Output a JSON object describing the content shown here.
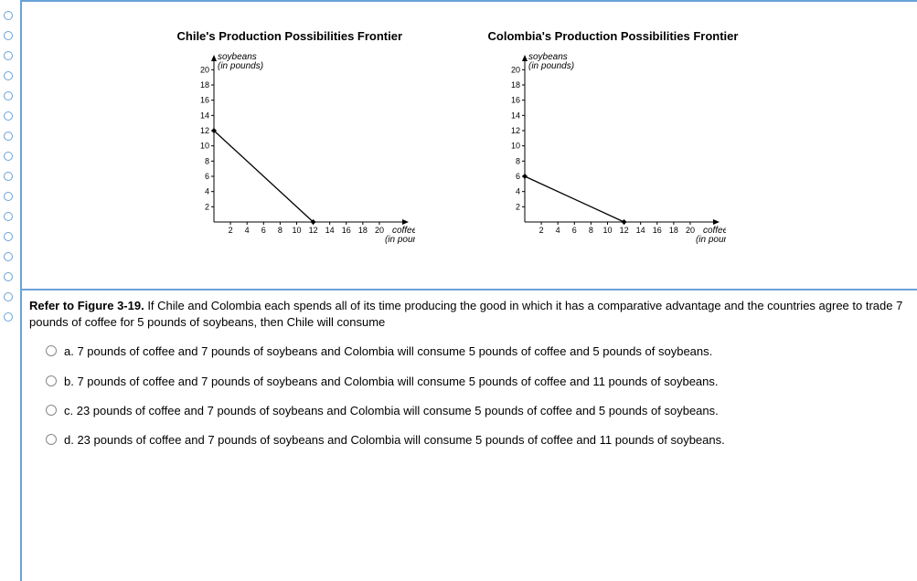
{
  "top_marker": ")",
  "rail_dot_count": 16,
  "charts": {
    "chile": {
      "title": "Chile's Production Possibilities Frontier",
      "y_axis_label": "soybeans",
      "y_axis_sub": "(in pounds)",
      "x_axis_label": "coffee",
      "x_axis_sub": "(in pounds)",
      "y_ticks": [
        2,
        4,
        6,
        8,
        10,
        12,
        14,
        16,
        18,
        20
      ],
      "x_ticks": [
        2,
        4,
        6,
        8,
        10,
        12,
        14,
        16,
        18,
        20
      ],
      "line_start": {
        "x": 0,
        "y": 12
      },
      "line_end": {
        "x": 12,
        "y": 0
      },
      "xlim": [
        0,
        21
      ],
      "ylim": [
        0,
        21
      ],
      "axis_color": "#000",
      "line_color": "#000",
      "point_color": "#000",
      "tick_len": 3,
      "font_size_tick": 9,
      "font_size_label": 10
    },
    "colombia": {
      "title": "Colombia's Production Possibilities Frontier",
      "y_axis_label": "soybeans",
      "y_axis_sub": "(in pounds)",
      "x_axis_label": "coffee",
      "x_axis_sub": "(in pounds)",
      "y_ticks": [
        2,
        4,
        6,
        8,
        10,
        12,
        14,
        16,
        18,
        20
      ],
      "x_ticks": [
        2,
        4,
        6,
        8,
        10,
        12,
        14,
        16,
        18,
        20
      ],
      "line_start": {
        "x": 0,
        "y": 6
      },
      "line_end": {
        "x": 12,
        "y": 0
      },
      "xlim": [
        0,
        21
      ],
      "ylim": [
        0,
        21
      ],
      "axis_color": "#000",
      "line_color": "#000",
      "point_color": "#000",
      "tick_len": 3,
      "font_size_tick": 9,
      "font_size_label": 10
    }
  },
  "question": {
    "ref": "Refer to Figure 3-19.",
    "body": " If Chile and Colombia each spends all of its time producing the good in which it has a comparative advantage and the countries agree to trade 7 pounds of coffee for 5 pounds of soybeans, then Chile will consume",
    "options": [
      {
        "key": "a",
        "text": "a. 7 pounds of coffee and 7 pounds of soybeans and Colombia will consume 5 pounds of coffee and 5 pounds of soybeans."
      },
      {
        "key": "b",
        "text": "b. 7 pounds of coffee and 7 pounds of soybeans and Colombia will consume 5 pounds of coffee and 11 pounds of soybeans."
      },
      {
        "key": "c",
        "text": "c. 23 pounds of coffee and 7 pounds of soybeans and Colombia will consume 5 pounds of coffee and 5 pounds of soybeans."
      },
      {
        "key": "d",
        "text": "d. 23 pounds of coffee and 7 pounds of soybeans and Colombia will consume 5 pounds of coffee and 11 pounds of soybeans."
      }
    ]
  },
  "colors": {
    "frame_border": "#6aa2d6"
  }
}
